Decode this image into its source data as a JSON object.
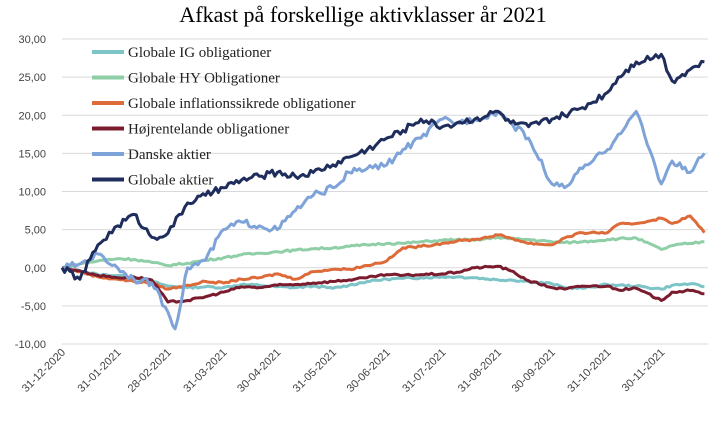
{
  "chart_data": {
    "type": "line",
    "title": "Afkast på forskellige aktivklasser år 2021",
    "xlabel": "",
    "ylabel": "",
    "ylim": [
      -10,
      30
    ],
    "yticks": [
      "-10,00",
      "-5,00",
      "0,00",
      "5,00",
      "10,00",
      "15,00",
      "20,00",
      "25,00",
      "30,00"
    ],
    "ytick_values": [
      -10,
      -5,
      0,
      5,
      10,
      15,
      20,
      25,
      30
    ],
    "xticks": [
      "31-12-2020",
      "31-01-2021",
      "28-02-2021",
      "31-03-2021",
      "30-04-2021",
      "31-05-2021",
      "30-06-2021",
      "31-07-2021",
      "31-08-2021",
      "30-09-2021",
      "31-10-2021",
      "30-11-2021"
    ],
    "x_day_range": [
      0,
      360
    ],
    "xtick_days": [
      0,
      31,
      59,
      90,
      120,
      151,
      181,
      212,
      243,
      273,
      304,
      334
    ],
    "legend_position": "top-left",
    "series": [
      {
        "name": "Globale IG obligationer",
        "color": "#7cc4c7",
        "x": [
          0,
          10,
          20,
          31,
          40,
          50,
          59,
          70,
          80,
          90,
          100,
          110,
          120,
          130,
          140,
          151,
          160,
          170,
          181,
          190,
          200,
          212,
          220,
          230,
          243,
          250,
          260,
          273,
          280,
          290,
          304,
          310,
          320,
          334,
          340,
          350,
          358
        ],
        "y": [
          0,
          -0.4,
          -0.9,
          -1.0,
          -1.3,
          -1.8,
          -2.4,
          -2.6,
          -2.5,
          -2.6,
          -2.2,
          -2.3,
          -2.5,
          -2.6,
          -2.4,
          -2.7,
          -2.3,
          -1.8,
          -1.5,
          -1.4,
          -1.3,
          -1.2,
          -1.2,
          -1.3,
          -1.6,
          -1.6,
          -1.8,
          -2.1,
          -2.6,
          -2.7,
          -2.2,
          -2.3,
          -2.4,
          -2.8,
          -2.3,
          -2.1,
          -2.5
        ]
      },
      {
        "name": "Globale HY Obligationer",
        "color": "#8fcfa7",
        "x": [
          0,
          10,
          20,
          31,
          40,
          50,
          59,
          70,
          80,
          90,
          100,
          110,
          120,
          130,
          140,
          151,
          160,
          170,
          181,
          190,
          200,
          212,
          220,
          230,
          243,
          250,
          260,
          273,
          280,
          290,
          304,
          310,
          320,
          334,
          340,
          350,
          358
        ],
        "y": [
          0,
          0.5,
          0.9,
          1.2,
          1.1,
          0.7,
          0.3,
          0.6,
          1.0,
          1.3,
          1.7,
          1.9,
          2.1,
          2.3,
          2.5,
          2.6,
          2.8,
          3.0,
          3.2,
          3.2,
          3.4,
          3.6,
          3.7,
          3.6,
          4.0,
          3.8,
          3.7,
          3.4,
          3.3,
          3.4,
          3.7,
          3.8,
          3.9,
          2.4,
          2.9,
          3.2,
          3.4
        ]
      },
      {
        "name": "Globale inflationssikrede obligationer",
        "color": "#dd6b3a",
        "x": [
          0,
          10,
          20,
          31,
          40,
          50,
          59,
          70,
          80,
          90,
          100,
          110,
          120,
          130,
          140,
          151,
          160,
          170,
          181,
          190,
          200,
          212,
          220,
          230,
          243,
          250,
          260,
          273,
          280,
          290,
          304,
          310,
          320,
          334,
          340,
          350,
          358
        ],
        "y": [
          0,
          -0.5,
          -1.2,
          -1.5,
          -1.8,
          -2.0,
          -2.8,
          -2.3,
          -1.8,
          -2.0,
          -1.5,
          -1.3,
          -0.8,
          -1.5,
          -0.5,
          -0.2,
          -0.2,
          0.3,
          0.9,
          2.6,
          2.8,
          3.2,
          3.5,
          3.7,
          4.3,
          3.9,
          3.2,
          3.0,
          3.9,
          4.6,
          4.6,
          5.7,
          5.8,
          6.5,
          5.8,
          6.8,
          4.6
        ]
      },
      {
        "name": "Højrentelande obligationer",
        "color": "#7b1c2e",
        "x": [
          0,
          10,
          20,
          31,
          40,
          50,
          59,
          70,
          80,
          90,
          100,
          110,
          120,
          130,
          140,
          151,
          160,
          170,
          181,
          190,
          200,
          212,
          220,
          230,
          243,
          250,
          260,
          273,
          280,
          290,
          304,
          310,
          320,
          334,
          340,
          350,
          358
        ],
        "y": [
          0,
          -0.4,
          -1.0,
          -1.3,
          -1.2,
          -1.6,
          -4.5,
          -4.3,
          -3.8,
          -3.2,
          -2.5,
          -2.6,
          -2.3,
          -2.2,
          -2.0,
          -1.8,
          -1.6,
          -1.3,
          -0.9,
          -1.0,
          -0.9,
          -0.8,
          -0.6,
          0.0,
          0.2,
          -0.4,
          -1.7,
          -2.6,
          -2.8,
          -2.4,
          -2.4,
          -2.9,
          -2.7,
          -4.3,
          -3.2,
          -3.0,
          -3.4
        ]
      },
      {
        "name": "Danske aktier",
        "color": "#7ea3d8",
        "x": [
          0,
          10,
          20,
          31,
          40,
          50,
          59,
          63,
          70,
          80,
          90,
          100,
          110,
          120,
          130,
          140,
          151,
          160,
          170,
          181,
          190,
          200,
          212,
          220,
          230,
          243,
          250,
          260,
          273,
          280,
          290,
          304,
          310,
          320,
          334,
          340,
          350,
          358
        ],
        "y": [
          0,
          0.5,
          1.8,
          0.0,
          -1.5,
          -2.0,
          -5.8,
          -8.0,
          0.0,
          1.0,
          5.0,
          6.0,
          5.5,
          5.0,
          7.5,
          9.5,
          10.5,
          12.5,
          13.0,
          13.5,
          15.5,
          17.0,
          19.5,
          19.0,
          19.5,
          20.5,
          19.0,
          17.0,
          11.0,
          10.5,
          13.0,
          15.5,
          17.5,
          20.5,
          11.0,
          14.0,
          12.5,
          15.0
        ]
      },
      {
        "name": "Globale aktier",
        "color": "#1f2d5c",
        "x": [
          0,
          10,
          20,
          31,
          40,
          50,
          59,
          70,
          80,
          90,
          100,
          110,
          120,
          130,
          140,
          151,
          160,
          170,
          181,
          190,
          200,
          212,
          220,
          230,
          243,
          250,
          260,
          273,
          280,
          290,
          304,
          310,
          320,
          334,
          340,
          350,
          358
        ],
        "y": [
          0,
          -1.5,
          3.0,
          5.5,
          7.0,
          4.0,
          4.5,
          8.5,
          9.5,
          10.5,
          11.5,
          12.0,
          12.5,
          12.0,
          12.5,
          13.5,
          14.5,
          15.5,
          17.0,
          18.0,
          19.5,
          18.5,
          19.0,
          19.5,
          20.5,
          19.0,
          18.5,
          19.5,
          20.0,
          21.0,
          23.0,
          25.0,
          27.0,
          28.0,
          24.5,
          26.0,
          27.0
        ]
      }
    ]
  }
}
